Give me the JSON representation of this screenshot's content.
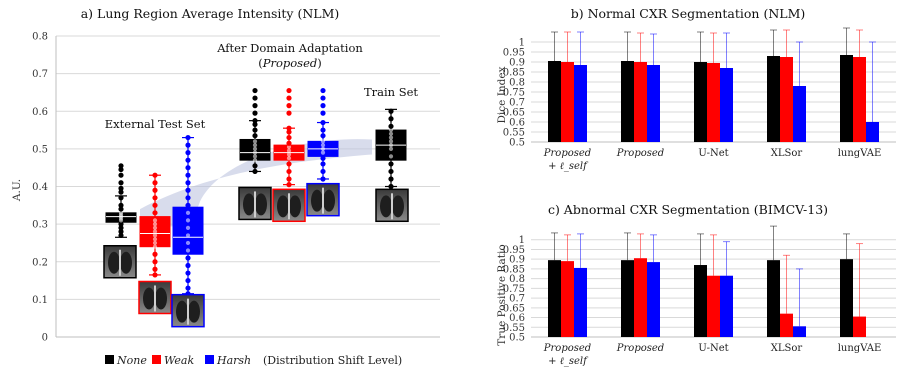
{
  "chart_data": [
    {
      "type": "box",
      "title": "a) Lung Region Average Intensity (NLM)",
      "ylabel": "A.U.",
      "ylim": [
        0,
        0.8
      ],
      "yticks": [
        "0",
        "0.1",
        "0.2",
        "0.3",
        "0.4",
        "0.5",
        "0.6",
        "0.7",
        "0.8"
      ],
      "grid": true,
      "annotations": {
        "external": "External Test Set",
        "after_line1": "After Domain Adaptation",
        "after_line2": "Proposed",
        "train": "Train Set"
      },
      "legend": {
        "items": [
          {
            "label": "None",
            "color": "#000000"
          },
          {
            "label": "Weak",
            "color": "#ff0000"
          },
          {
            "label": "Harsh",
            "color": "#0000ff"
          }
        ],
        "suffix": "(Distribution Shift Level)"
      },
      "groups": [
        {
          "name": "External Test Set",
          "boxes": [
            {
              "series": "None",
              "q1": 0.305,
              "median": 0.32,
              "q3": 0.33,
              "whisker_low": 0.265,
              "whisker_high": 0.375,
              "points": [
                0.27,
                0.28,
                0.29,
                0.3,
                0.31,
                0.315,
                0.32,
                0.325,
                0.33,
                0.34,
                0.35,
                0.37,
                0.385,
                0.395,
                0.41,
                0.43,
                0.445,
                0.455
              ]
            },
            {
              "series": "Weak",
              "q1": 0.24,
              "median": 0.275,
              "q3": 0.32,
              "whisker_low": 0.165,
              "whisker_high": 0.43,
              "points": [
                0.165,
                0.18,
                0.2,
                0.22,
                0.24,
                0.25,
                0.26,
                0.27,
                0.28,
                0.29,
                0.3,
                0.31,
                0.33,
                0.35,
                0.37,
                0.39,
                0.41,
                0.43
              ]
            },
            {
              "series": "Harsh",
              "q1": 0.22,
              "median": 0.265,
              "q3": 0.345,
              "whisker_low": 0.115,
              "whisker_high": 0.53,
              "points": [
                0.115,
                0.13,
                0.15,
                0.17,
                0.19,
                0.21,
                0.23,
                0.25,
                0.27,
                0.29,
                0.31,
                0.33,
                0.35,
                0.37,
                0.39,
                0.41,
                0.43,
                0.45,
                0.47,
                0.49,
                0.51,
                0.53
              ]
            }
          ]
        },
        {
          "name": "After Domain Adaptation",
          "boxes": [
            {
              "series": "None",
              "q1": 0.47,
              "median": 0.49,
              "q3": 0.525,
              "whisker_low": 0.44,
              "whisker_high": 0.575,
              "points": [
                0.44,
                0.455,
                0.47,
                0.48,
                0.49,
                0.5,
                0.51,
                0.52,
                0.535,
                0.55,
                0.565,
                0.575,
                0.595,
                0.615,
                0.635,
                0.655
              ]
            },
            {
              "series": "Weak",
              "q1": 0.47,
              "median": 0.49,
              "q3": 0.51,
              "whisker_low": 0.405,
              "whisker_high": 0.555,
              "points": [
                0.405,
                0.42,
                0.44,
                0.46,
                0.475,
                0.485,
                0.495,
                0.505,
                0.515,
                0.53,
                0.545,
                0.555,
                0.595,
                0.615,
                0.635,
                0.655
              ]
            },
            {
              "series": "Harsh",
              "q1": 0.48,
              "median": 0.5,
              "q3": 0.52,
              "whisker_low": 0.42,
              "whisker_high": 0.57,
              "points": [
                0.42,
                0.44,
                0.46,
                0.475,
                0.49,
                0.5,
                0.51,
                0.52,
                0.535,
                0.55,
                0.57,
                0.595,
                0.615,
                0.635,
                0.655
              ]
            }
          ]
        },
        {
          "name": "Train Set",
          "boxes": [
            {
              "series": "None",
              "q1": 0.47,
              "median": 0.51,
              "q3": 0.55,
              "whisker_low": 0.4,
              "whisker_high": 0.605,
              "points": [
                0.4,
                0.42,
                0.44,
                0.46,
                0.48,
                0.5,
                0.51,
                0.52,
                0.53,
                0.54,
                0.55,
                0.56,
                0.58,
                0.6
              ]
            }
          ]
        }
      ]
    },
    {
      "type": "bar",
      "title": "b) Normal CXR Segmentation (NLM)",
      "ylabel": "Dice Index",
      "ylim": [
        0.5,
        1.05
      ],
      "yticks": [
        "0.5",
        "0.55",
        "0.6",
        "0.65",
        "0.7",
        "0.75",
        "0.8",
        "0.85",
        "0.9",
        "0.95",
        "1"
      ],
      "categories": [
        "Proposed",
        "Proposed",
        "U-Net",
        "XLSor",
        "lungVAE"
      ],
      "category_sub": [
        "+ ℓ_self",
        "",
        "",
        "",
        ""
      ],
      "series": [
        {
          "name": "None",
          "color": "#000000",
          "values": [
            0.905,
            0.905,
            0.9,
            0.93,
            0.935
          ],
          "err_high": [
            1.05,
            1.05,
            1.05,
            1.06,
            1.07
          ]
        },
        {
          "name": "Weak",
          "color": "#ff0000",
          "values": [
            0.9,
            0.9,
            0.895,
            0.925,
            0.925
          ],
          "err_high": [
            1.05,
            1.045,
            1.045,
            1.06,
            1.06
          ]
        },
        {
          "name": "Harsh",
          "color": "#0000ff",
          "values": [
            0.885,
            0.885,
            0.87,
            0.78,
            0.6
          ],
          "err_high": [
            1.05,
            1.04,
            1.045,
            1.0,
            1.0
          ]
        }
      ]
    },
    {
      "type": "bar",
      "title": "c) Abnormal CXR Segmentation (BIMCV-13)",
      "ylabel": "True Positive Ratio",
      "ylim": [
        0.5,
        1.05
      ],
      "yticks": [
        "0.5",
        "0.55",
        "0.6",
        "0.65",
        "0.7",
        "0.75",
        "0.8",
        "0.85",
        "0.9",
        "0.95",
        "1"
      ],
      "categories": [
        "Proposed",
        "Proposed",
        "U-Net",
        "XLSor",
        "lungVAE"
      ],
      "category_sub": [
        "+ ℓ_self",
        "",
        "",
        "",
        ""
      ],
      "series": [
        {
          "name": "None",
          "color": "#000000",
          "values": [
            0.895,
            0.895,
            0.87,
            0.895,
            0.9
          ],
          "err_high": [
            1.035,
            1.035,
            1.03,
            1.07,
            1.03
          ]
        },
        {
          "name": "Weak",
          "color": "#ff0000",
          "values": [
            0.89,
            0.905,
            0.815,
            0.62,
            0.605
          ],
          "err_high": [
            1.025,
            1.03,
            1.025,
            0.92,
            0.98
          ]
        },
        {
          "name": "Harsh",
          "color": "#0000ff",
          "values": [
            0.855,
            0.885,
            0.815,
            0.555,
            0.5
          ],
          "err_high": [
            1.03,
            1.025,
            0.99,
            0.85,
            0.5
          ]
        }
      ]
    }
  ]
}
